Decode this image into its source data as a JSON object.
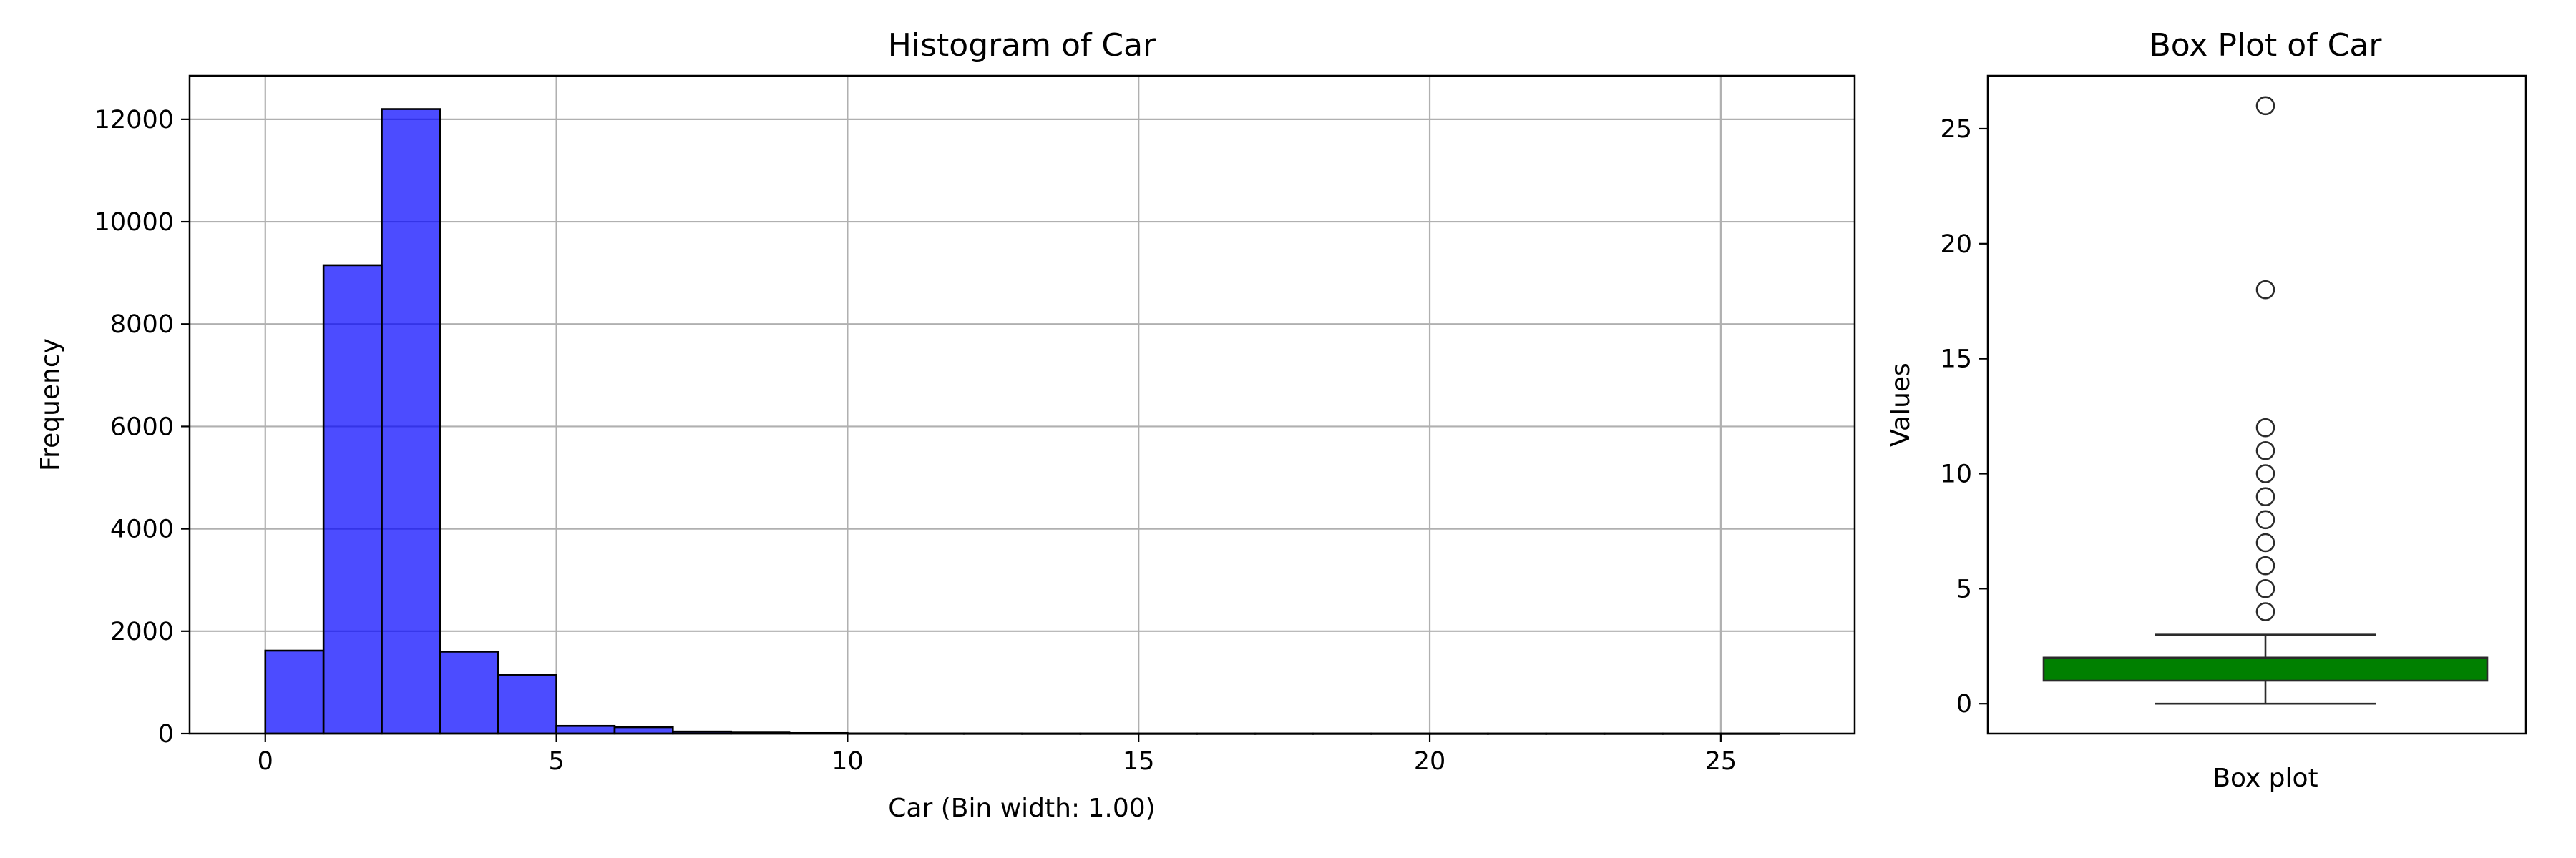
{
  "chart_data": [
    {
      "type": "bar",
      "title": "Histogram of Car",
      "xlabel": "Car (Bin width: 1.00)",
      "ylabel": "Frequency",
      "xlim": [
        -1.3,
        27.3
      ],
      "ylim": [
        0,
        12850
      ],
      "xticks": [
        0,
        5,
        10,
        15,
        20,
        25
      ],
      "yticks": [
        0,
        2000,
        4000,
        6000,
        8000,
        10000,
        12000
      ],
      "grid": true,
      "bin_width": 1,
      "bin_start": 0,
      "values": [
        1620,
        9150,
        12200,
        1600,
        1150,
        150,
        125,
        40,
        20,
        10,
        3,
        2,
        2,
        1,
        1,
        1,
        1,
        1,
        1,
        1,
        1,
        1,
        1,
        1,
        1,
        1
      ],
      "bar_color": "#0000ff",
      "bar_opacity": 0.7,
      "edge_color": "#000000"
    },
    {
      "type": "box",
      "title": "Box Plot of Car",
      "xlabel": "Box plot",
      "ylabel": "Values",
      "ylim": [
        -1.3,
        27.3
      ],
      "yticks": [
        0,
        5,
        10,
        15,
        20,
        25
      ],
      "grid": false,
      "whisker_low": 0,
      "q1": 1,
      "median": 2,
      "q3": 2,
      "whisker_high": 3,
      "outliers": [
        4,
        5,
        6,
        7,
        8,
        9,
        10,
        11,
        12,
        18,
        26
      ],
      "box_color": "#008000"
    }
  ]
}
